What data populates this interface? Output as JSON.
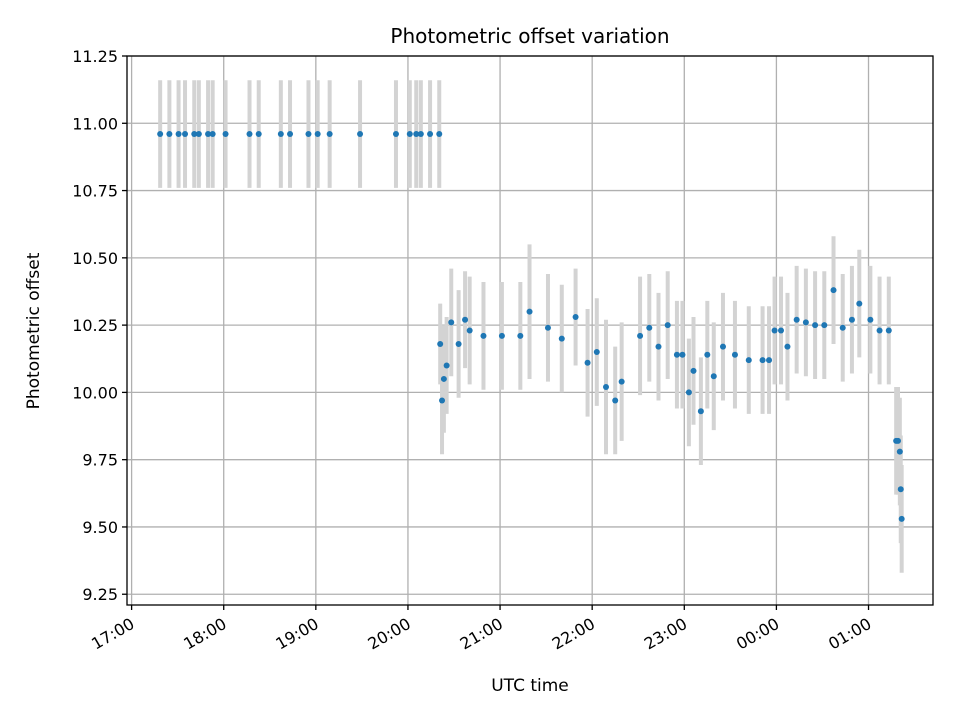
{
  "chart_data": {
    "type": "scatter",
    "title": "Photometric offset variation",
    "xlabel": "UTC time",
    "ylabel": "Photometric offset",
    "grid": true,
    "x_unit": "hours (UTC)",
    "xlim": [
      16.95,
      25.7
    ],
    "ylim": [
      9.21,
      11.25
    ],
    "x_ticks": [
      17,
      18,
      19,
      20,
      21,
      22,
      23,
      24,
      25
    ],
    "x_tick_labels": [
      "17:00",
      "18:00",
      "19:00",
      "20:00",
      "21:00",
      "22:00",
      "23:00",
      "00:00",
      "01:00"
    ],
    "y_ticks": [
      9.25,
      9.5,
      9.75,
      10.0,
      10.25,
      10.5,
      10.75,
      11.0,
      11.25
    ],
    "y_tick_labels": [
      "9.25",
      "9.50",
      "9.75",
      "10.00",
      "10.25",
      "10.50",
      "10.75",
      "11.00",
      "11.25"
    ],
    "colors": {
      "points": "#1f77b4",
      "errorbars": "#d3d3d3"
    },
    "series": [
      {
        "style": "points-with-errorbars",
        "x": [
          17.31,
          17.41,
          17.51,
          17.58,
          17.68,
          17.73,
          17.83,
          17.88,
          18.02,
          18.28,
          18.38,
          18.62,
          18.72,
          18.92,
          19.02,
          19.15,
          19.48,
          19.87,
          20.02,
          20.09,
          20.14,
          20.24,
          20.34,
          20.35,
          20.37,
          20.39,
          20.42,
          20.47,
          20.55,
          20.62,
          20.67,
          20.82,
          21.02,
          21.22,
          21.32,
          21.52,
          21.67,
          21.82,
          21.95,
          22.05,
          22.15,
          22.25,
          22.32,
          22.52,
          22.62,
          22.72,
          22.82,
          22.92,
          22.98,
          23.05,
          23.1,
          23.18,
          23.25,
          23.32,
          23.42,
          23.55,
          23.7,
          23.85,
          23.92,
          23.98,
          24.05,
          24.12,
          24.22,
          24.32,
          24.42,
          24.52,
          24.62,
          24.72,
          24.82,
          24.9,
          25.02,
          25.12,
          25.22,
          25.3,
          25.32,
          25.34,
          25.35,
          25.36
        ],
        "y": [
          10.96,
          10.96,
          10.96,
          10.96,
          10.96,
          10.96,
          10.96,
          10.96,
          10.96,
          10.96,
          10.96,
          10.96,
          10.96,
          10.96,
          10.96,
          10.96,
          10.96,
          10.96,
          10.96,
          10.96,
          10.96,
          10.96,
          10.96,
          10.18,
          9.97,
          10.05,
          10.1,
          10.26,
          10.18,
          10.27,
          10.23,
          10.21,
          10.21,
          10.21,
          10.3,
          10.24,
          10.2,
          10.28,
          10.11,
          10.15,
          10.02,
          9.97,
          10.04,
          10.21,
          10.24,
          10.17,
          10.25,
          10.14,
          10.14,
          10.0,
          10.08,
          9.93,
          10.14,
          10.06,
          10.17,
          10.14,
          10.12,
          10.12,
          10.12,
          10.23,
          10.23,
          10.17,
          10.27,
          10.26,
          10.25,
          10.25,
          10.38,
          10.24,
          10.27,
          10.33,
          10.27,
          10.23,
          10.23,
          9.82,
          9.82,
          9.78,
          9.64,
          9.53
        ],
        "yerr": [
          0.2,
          0.2,
          0.2,
          0.2,
          0.2,
          0.2,
          0.2,
          0.2,
          0.2,
          0.2,
          0.2,
          0.2,
          0.2,
          0.2,
          0.2,
          0.2,
          0.2,
          0.2,
          0.2,
          0.2,
          0.2,
          0.2,
          0.2,
          0.15,
          0.2,
          0.2,
          0.18,
          0.2,
          0.2,
          0.18,
          0.2,
          0.2,
          0.2,
          0.2,
          0.25,
          0.2,
          0.2,
          0.18,
          0.2,
          0.2,
          0.25,
          0.2,
          0.22,
          0.22,
          0.2,
          0.2,
          0.2,
          0.2,
          0.2,
          0.2,
          0.2,
          0.2,
          0.2,
          0.2,
          0.2,
          0.2,
          0.2,
          0.2,
          0.2,
          0.2,
          0.2,
          0.2,
          0.2,
          0.2,
          0.2,
          0.2,
          0.2,
          0.2,
          0.2,
          0.2,
          0.2,
          0.2,
          0.2,
          0.2,
          0.2,
          0.2,
          0.2,
          0.2
        ]
      }
    ]
  }
}
